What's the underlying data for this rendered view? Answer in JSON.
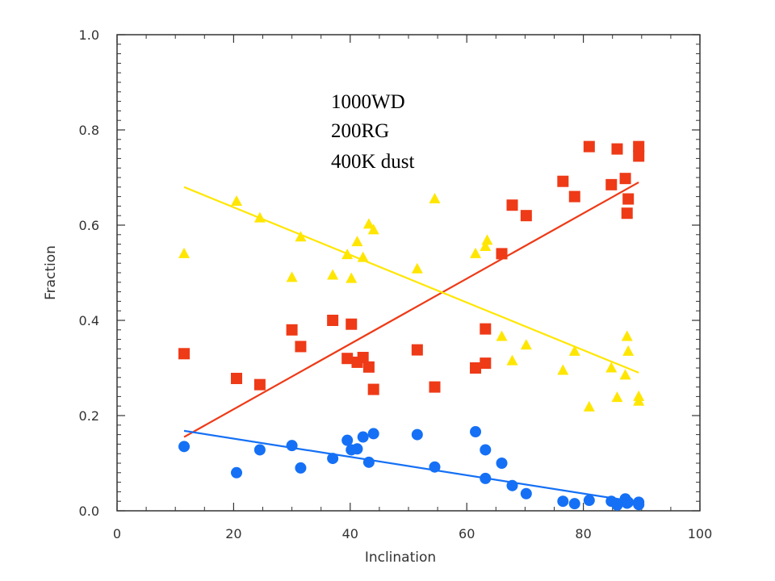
{
  "chart_data": {
    "type": "scatter",
    "title": "",
    "xlabel": "Inclination",
    "ylabel": "Fraction",
    "xlim": [
      0,
      100
    ],
    "ylim": [
      0,
      1.0
    ],
    "xticks": [
      "0",
      "20",
      "40",
      "60",
      "80",
      "100"
    ],
    "yticks": [
      "0.0",
      "0.2",
      "0.4",
      "0.6",
      "0.8",
      "1.0"
    ],
    "grid": false,
    "annotation": [
      "1000WD",
      "200RG",
      "400K dust"
    ],
    "series": [
      {
        "marker": "square",
        "color": "#ee3a17",
        "points": [
          [
            11.5,
            0.33
          ],
          [
            20.5,
            0.278
          ],
          [
            24.5,
            0.265
          ],
          [
            30,
            0.38
          ],
          [
            31.5,
            0.345
          ],
          [
            37,
            0.4
          ],
          [
            39.5,
            0.32
          ],
          [
            40.2,
            0.392
          ],
          [
            41.2,
            0.312
          ],
          [
            42.2,
            0.322
          ],
          [
            43.2,
            0.302
          ],
          [
            44,
            0.255
          ],
          [
            51.5,
            0.338
          ],
          [
            54.5,
            0.26
          ],
          [
            61.5,
            0.3
          ],
          [
            63.2,
            0.31
          ],
          [
            63.2,
            0.382
          ],
          [
            66,
            0.54
          ],
          [
            67.8,
            0.642
          ],
          [
            70.2,
            0.62
          ],
          [
            76.5,
            0.692
          ],
          [
            78.5,
            0.66
          ],
          [
            81,
            0.765
          ],
          [
            84.8,
            0.685
          ],
          [
            85.8,
            0.76
          ],
          [
            87.2,
            0.698
          ],
          [
            87.5,
            0.625
          ],
          [
            87.7,
            0.655
          ],
          [
            89.5,
            0.745
          ],
          [
            89.5,
            0.765
          ]
        ],
        "fit": [
          [
            11.5,
            0.155
          ],
          [
            89.5,
            0.69
          ]
        ]
      },
      {
        "marker": "triangle",
        "color": "#ffe600",
        "points": [
          [
            11.5,
            0.54
          ],
          [
            20.5,
            0.65
          ],
          [
            24.5,
            0.615
          ],
          [
            30,
            0.49
          ],
          [
            31.5,
            0.575
          ],
          [
            37,
            0.495
          ],
          [
            39.5,
            0.538
          ],
          [
            40.2,
            0.488
          ],
          [
            41.2,
            0.565
          ],
          [
            42.2,
            0.532
          ],
          [
            43.2,
            0.602
          ],
          [
            44,
            0.59
          ],
          [
            51.5,
            0.508
          ],
          [
            54.5,
            0.655
          ],
          [
            61.5,
            0.54
          ],
          [
            63.2,
            0.555
          ],
          [
            63.5,
            0.568
          ],
          [
            66,
            0.366
          ],
          [
            67.8,
            0.315
          ],
          [
            70.2,
            0.348
          ],
          [
            76.5,
            0.295
          ],
          [
            78.5,
            0.335
          ],
          [
            81,
            0.218
          ],
          [
            84.8,
            0.3
          ],
          [
            85.8,
            0.238
          ],
          [
            87.2,
            0.285
          ],
          [
            87.5,
            0.366
          ],
          [
            87.7,
            0.335
          ],
          [
            89.5,
            0.24
          ],
          [
            89.5,
            0.23
          ]
        ],
        "fit": [
          [
            11.5,
            0.68
          ],
          [
            89.5,
            0.29
          ]
        ]
      },
      {
        "marker": "circle",
        "color": "#1570f5",
        "points": [
          [
            11.5,
            0.135
          ],
          [
            20.5,
            0.08
          ],
          [
            24.5,
            0.128
          ],
          [
            30,
            0.137
          ],
          [
            31.5,
            0.09
          ],
          [
            37,
            0.11
          ],
          [
            39.5,
            0.148
          ],
          [
            40.2,
            0.128
          ],
          [
            41.2,
            0.13
          ],
          [
            42.2,
            0.155
          ],
          [
            43.2,
            0.102
          ],
          [
            44,
            0.162
          ],
          [
            51.5,
            0.16
          ],
          [
            54.5,
            0.092
          ],
          [
            61.5,
            0.166
          ],
          [
            63.2,
            0.068
          ],
          [
            63.2,
            0.128
          ],
          [
            66,
            0.1
          ],
          [
            67.8,
            0.053
          ],
          [
            70.2,
            0.036
          ],
          [
            76.5,
            0.02
          ],
          [
            78.5,
            0.015
          ],
          [
            81,
            0.022
          ],
          [
            84.8,
            0.02
          ],
          [
            85.8,
            0.012
          ],
          [
            87.2,
            0.025
          ],
          [
            87.5,
            0.016
          ],
          [
            87.7,
            0.018
          ],
          [
            89.5,
            0.018
          ],
          [
            89.5,
            0.013
          ]
        ],
        "fit": [
          [
            11.5,
            0.168
          ],
          [
            89.5,
            0.018
          ]
        ]
      }
    ]
  }
}
